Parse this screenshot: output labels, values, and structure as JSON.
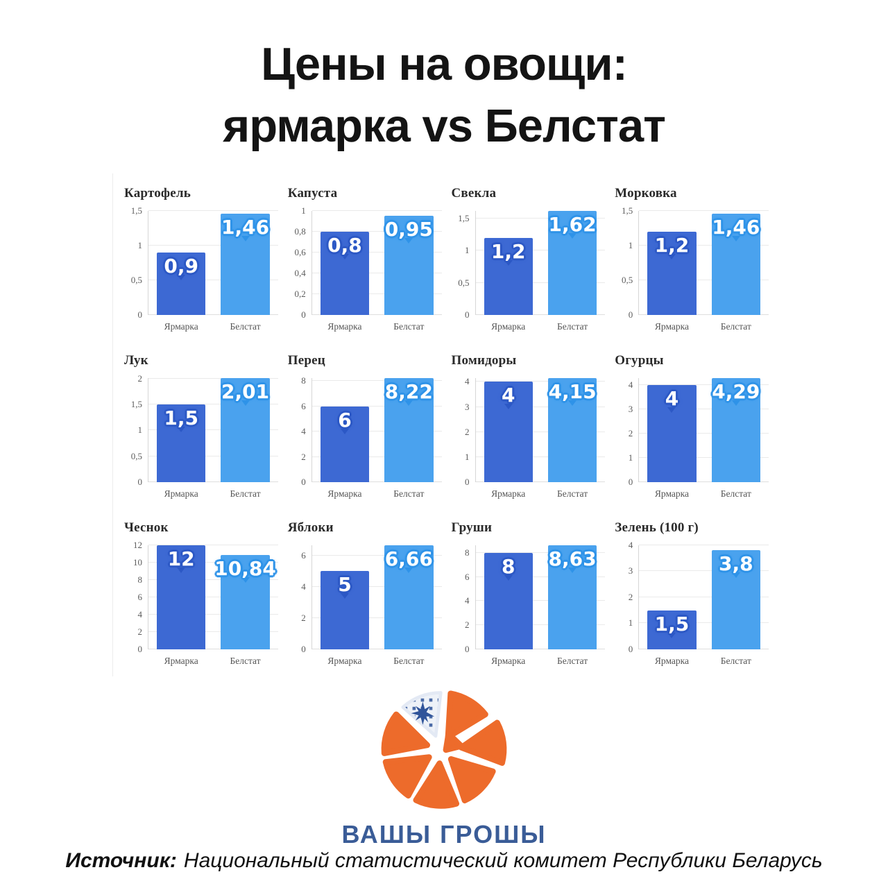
{
  "title": {
    "line1": "Цены на овощи:",
    "line2": "ярмарка vs Белстат"
  },
  "colors": {
    "bar_yarmarka": "#3D69D3",
    "bar_belstat": "#4AA2EE",
    "label_outline_yarmarka": "#2C58C5",
    "label_outline_belstat": "#2F93E8",
    "grid_line": "#EAEAEA",
    "axis_line": "#D6D6D6",
    "logo_orange": "#ED6B2B",
    "logo_blue": "#3A5C97"
  },
  "chart_data": {
    "type": "bar",
    "series_names": [
      "Ярмарка",
      "Белстат"
    ],
    "legend_position": "none",
    "grid": true,
    "charts": [
      {
        "title": "Картофель",
        "values": [
          0.9,
          1.46
        ],
        "value_labels": [
          "0,9",
          "1,46"
        ],
        "ticks": [
          0,
          0.5,
          1,
          1.5
        ],
        "tick_labels": [
          "0",
          "0,5",
          "1",
          "1,5"
        ]
      },
      {
        "title": "Капуста",
        "values": [
          0.8,
          0.95
        ],
        "value_labels": [
          "0,8",
          "0,95"
        ],
        "ticks": [
          0,
          0.2,
          0.4,
          0.6,
          0.8,
          1
        ],
        "tick_labels": [
          "0",
          "0,2",
          "0,4",
          "0,6",
          "0,8",
          "1"
        ]
      },
      {
        "title": "Свекла",
        "values": [
          1.2,
          1.62
        ],
        "value_labels": [
          "1,2",
          "1,62"
        ],
        "ticks": [
          0,
          0.5,
          1,
          1.5
        ],
        "tick_labels": [
          "0",
          "0,5",
          "1",
          "1,5"
        ]
      },
      {
        "title": "Морковка",
        "values": [
          1.2,
          1.46
        ],
        "value_labels": [
          "1,2",
          "1,46"
        ],
        "ticks": [
          0,
          0.5,
          1,
          1.5
        ],
        "tick_labels": [
          "0",
          "0,5",
          "1",
          "1,5"
        ]
      },
      {
        "title": "Лук",
        "values": [
          1.5,
          2.01
        ],
        "value_labels": [
          "1,5",
          "2,01"
        ],
        "ticks": [
          0,
          0.5,
          1,
          1.5,
          2
        ],
        "tick_labels": [
          "0",
          "0,5",
          "1",
          "1,5",
          "2"
        ]
      },
      {
        "title": "Перец",
        "values": [
          6,
          8.22
        ],
        "value_labels": [
          "6",
          "8,22"
        ],
        "ticks": [
          0,
          2,
          4,
          6,
          8
        ],
        "tick_labels": [
          "0",
          "2",
          "4",
          "6",
          "8"
        ]
      },
      {
        "title": "Помидоры",
        "values": [
          4,
          4.15
        ],
        "value_labels": [
          "4",
          "4,15"
        ],
        "ticks": [
          0,
          1,
          2,
          3,
          4
        ],
        "tick_labels": [
          "0",
          "1",
          "2",
          "3",
          "4"
        ]
      },
      {
        "title": "Огурцы",
        "values": [
          4,
          4.29
        ],
        "value_labels": [
          "4",
          "4,29"
        ],
        "ticks": [
          0,
          1,
          2,
          3,
          4
        ],
        "tick_labels": [
          "0",
          "1",
          "2",
          "3",
          "4"
        ]
      },
      {
        "title": "Чеснок",
        "values": [
          12,
          10.84
        ],
        "value_labels": [
          "12",
          "10,84"
        ],
        "ticks": [
          0,
          2,
          4,
          6,
          8,
          10,
          12
        ],
        "tick_labels": [
          "0",
          "2",
          "4",
          "6",
          "8",
          "10",
          "12"
        ]
      },
      {
        "title": "Яблоки",
        "values": [
          5,
          6.66
        ],
        "value_labels": [
          "5",
          "6,66"
        ],
        "ticks": [
          0,
          2,
          4,
          6
        ],
        "tick_labels": [
          "0",
          "2",
          "4",
          "6"
        ]
      },
      {
        "title": "Груши",
        "values": [
          8,
          8.63
        ],
        "value_labels": [
          "8",
          "8,63"
        ],
        "ticks": [
          0,
          2,
          4,
          6,
          8
        ],
        "tick_labels": [
          "0",
          "2",
          "4",
          "6",
          "8"
        ]
      },
      {
        "title": "Зелень (100 г)",
        "values": [
          1.5,
          3.8
        ],
        "value_labels": [
          "1,5",
          "3,8"
        ],
        "ticks": [
          0,
          1,
          2,
          3,
          4
        ],
        "tick_labels": [
          "0",
          "1",
          "2",
          "3",
          "4"
        ]
      }
    ]
  },
  "logo": {
    "text": "ВАШЫ ГРОШЫ"
  },
  "source": {
    "prefix": "Источник:",
    "text": "Национальный статистический комитет Республики Беларусь"
  }
}
